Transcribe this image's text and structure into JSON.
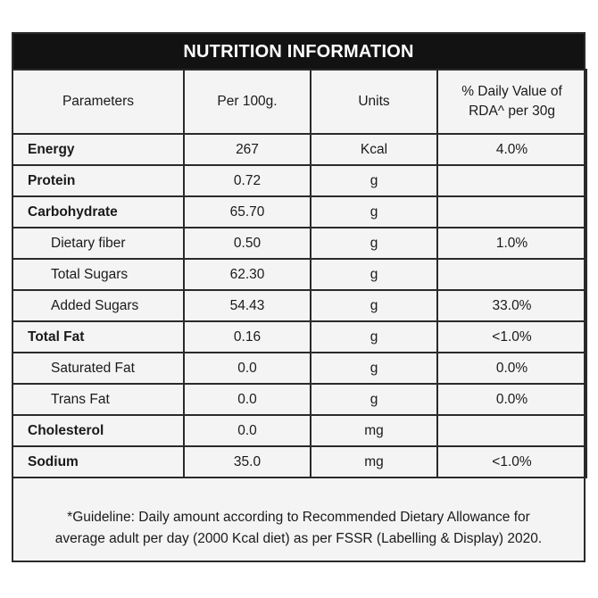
{
  "title": "NUTRITION INFORMATION",
  "headers": {
    "parameters": "Parameters",
    "per100": "Per 100g.",
    "units": "Units",
    "dv_line1": "% Daily Value of",
    "dv_line2": "RDA^ per 30g"
  },
  "rows": [
    {
      "name": "Energy",
      "value": "267",
      "unit": "Kcal",
      "dv": "4.0%"
    },
    {
      "name": "Protein",
      "value": "0.72",
      "unit": "g",
      "dv": ""
    },
    {
      "name": "Carbohydrate",
      "value": "65.70",
      "unit": "g",
      "dv": ""
    },
    {
      "name": "Dietary fiber",
      "value": "0.50",
      "unit": "g",
      "dv": "1.0%"
    },
    {
      "name": "Total Sugars",
      "value": "62.30",
      "unit": "g",
      "dv": ""
    },
    {
      "name": "Added Sugars",
      "value": "54.43",
      "unit": "g",
      "dv": "33.0%"
    },
    {
      "name": "Total Fat",
      "value": "0.16",
      "unit": "g",
      "dv": "<1.0%"
    },
    {
      "name": "Saturated Fat",
      "value": "0.0",
      "unit": "g",
      "dv": "0.0%"
    },
    {
      "name": "Trans Fat",
      "value": "0.0",
      "unit": "g",
      "dv": "0.0%"
    },
    {
      "name": "Cholesterol",
      "value": "0.0",
      "unit": "mg",
      "dv": ""
    },
    {
      "name": "Sodium",
      "value": "35.0",
      "unit": "mg",
      "dv": "<1.0%"
    }
  ],
  "footnote": {
    "line1": "*Guideline: Daily amount according to Recommended Dietary Allowance for",
    "line2": "average adult per day (2000 Kcal diet) as per FSSR (Labelling & Display) 2020."
  }
}
